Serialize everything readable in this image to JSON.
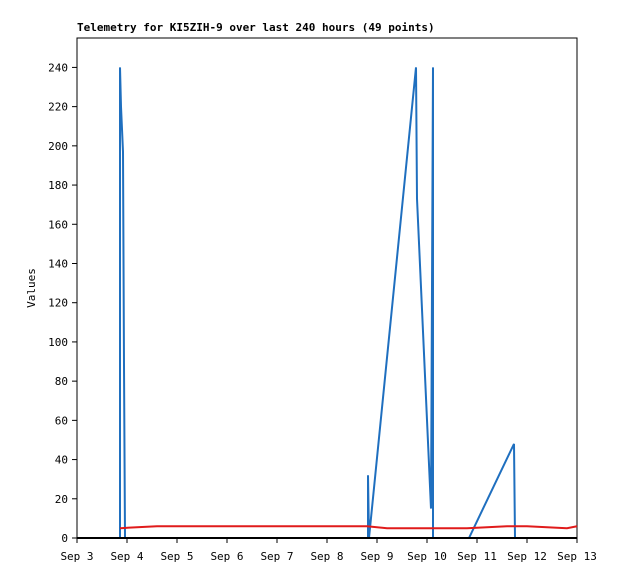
{
  "chart_data": {
    "type": "line",
    "title": "Telemetry for KI5ZIH-9 over last 240 hours (49 points)",
    "ylabel": "Values",
    "xlim": [
      3,
      13
    ],
    "xticks": [
      {
        "value": 3,
        "label": "Sep 3"
      },
      {
        "value": 4,
        "label": "Sep 4"
      },
      {
        "value": 5,
        "label": "Sep 5"
      },
      {
        "value": 6,
        "label": "Sep 6"
      },
      {
        "value": 7,
        "label": "Sep 7"
      },
      {
        "value": 8,
        "label": "Sep 8"
      },
      {
        "value": 9,
        "label": "Sep 9"
      },
      {
        "value": 10,
        "label": "Sep 10"
      },
      {
        "value": 11,
        "label": "Sep 11"
      },
      {
        "value": 12,
        "label": "Sep 12"
      },
      {
        "value": 13,
        "label": "Sep 13"
      }
    ],
    "ylim": [
      0,
      255
    ],
    "yticks": [
      0,
      20,
      40,
      60,
      80,
      100,
      120,
      140,
      160,
      180,
      200,
      220,
      240
    ],
    "grid": false,
    "series": [
      {
        "color": "#1f6fbf",
        "x": [
          3.86,
          3.86,
          3.88,
          3.92,
          3.94,
          3.96,
          8.82,
          8.82,
          8.84,
          9.78,
          9.8,
          10.08,
          10.12,
          10.12,
          10.84,
          11.74,
          11.76
        ],
        "values": [
          0,
          240,
          220,
          197,
          88,
          0,
          0,
          32,
          0,
          240,
          173,
          15,
          240,
          0,
          0,
          48,
          0
        ]
      },
      {
        "color": "#e01b1b",
        "x": [
          3.86,
          4.2,
          4.6,
          5,
          6,
          7,
          8,
          8.8,
          9.2,
          10,
          10.8,
          11.2,
          11.6,
          12,
          12.4,
          12.8,
          13
        ],
        "values": [
          5,
          5.5,
          6,
          6,
          6,
          6,
          6,
          6,
          5,
          5,
          5,
          5.5,
          6,
          6,
          5.5,
          5,
          6
        ]
      }
    ]
  }
}
